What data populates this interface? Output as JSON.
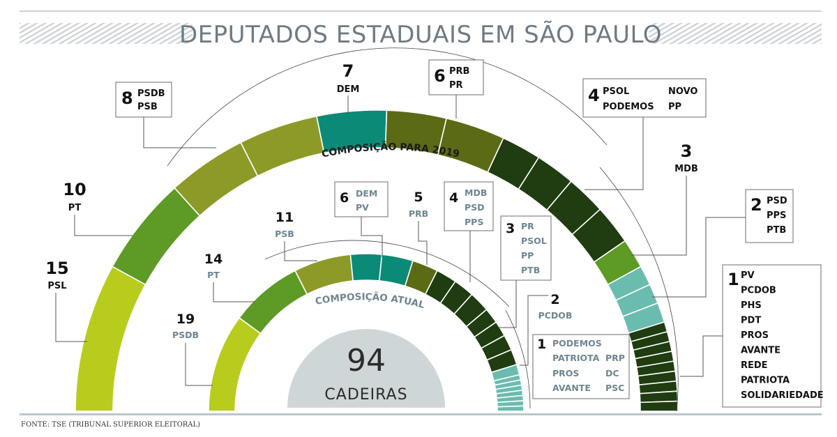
{
  "title": "DEPUTADOS ESTADUAIS EM SÃO PAULO",
  "source": "FONTE: TSE (TRIBUNAL SUPERIOR ELEITORAL)",
  "center": {
    "number": "94",
    "label": "CADEIRAS"
  },
  "chart_data": [
    {
      "type": "semicircle-parliament",
      "title": "COMPOSIÇÃO PARA 2019",
      "total": 94,
      "groups": [
        {
          "value": 15,
          "parties": [
            "PSL"
          ],
          "count": 1,
          "color": "#b8cc1e"
        },
        {
          "value": 10,
          "parties": [
            "PT"
          ],
          "count": 1,
          "color": "#5d9a26"
        },
        {
          "value": 8,
          "parties": [
            "PSDB",
            "PSB"
          ],
          "count": 2,
          "color": "#8e9a28"
        },
        {
          "value": 7,
          "parties": [
            "DEM"
          ],
          "count": 1,
          "color": "#0b8a78"
        },
        {
          "value": 6,
          "parties": [
            "PRB",
            "PR"
          ],
          "count": 2,
          "color": "#5b6a14"
        },
        {
          "value": 4,
          "parties": [
            "PSOL",
            "NOVO",
            "PODEMOS",
            "PP"
          ],
          "count": 4,
          "color": "#1f3d10"
        },
        {
          "value": 3,
          "parties": [
            "MDB"
          ],
          "count": 1,
          "color": "#5d9a26"
        },
        {
          "value": 2,
          "parties": [
            "PSD",
            "PPS",
            "PTB"
          ],
          "count": 3,
          "color": "#6abcae"
        },
        {
          "value": 1,
          "parties": [
            "PV",
            "PCDOB",
            "PHS",
            "PDT",
            "PROS",
            "AVANTE",
            "REDE",
            "PATRIOTA",
            "SOLIDARIEDADE"
          ],
          "count": 9,
          "color": "#1f3d10"
        }
      ]
    },
    {
      "type": "semicircle-parliament",
      "title": "COMPOSIÇÃO ATUAL",
      "total": 94,
      "groups": [
        {
          "value": 19,
          "parties": [
            "PSDB"
          ],
          "count": 1,
          "color": "#b8cc1e"
        },
        {
          "value": 14,
          "parties": [
            "PT"
          ],
          "count": 1,
          "color": "#5d9a26"
        },
        {
          "value": 11,
          "parties": [
            "PSB"
          ],
          "count": 1,
          "color": "#8e9a28"
        },
        {
          "value": 6,
          "parties": [
            "DEM",
            "PV"
          ],
          "count": 2,
          "color": "#0b8a78"
        },
        {
          "value": 5,
          "parties": [
            "PRB"
          ],
          "count": 1,
          "color": "#5b6a14"
        },
        {
          "value": 4,
          "parties": [
            "MDB",
            "PSD",
            "PPS"
          ],
          "count": 3,
          "color": "#1f3d10"
        },
        {
          "value": 3,
          "parties": [
            "PR",
            "PSOL",
            "PP",
            "PTB"
          ],
          "count": 4,
          "color": "#1f3d10"
        },
        {
          "value": 2,
          "parties": [
            "PCDOB"
          ],
          "count": 1,
          "color": "#6abcae"
        },
        {
          "value": 1,
          "parties": [
            "PODEMOS",
            "PATRIOTA",
            "PROS",
            "AVANTE",
            "PRP",
            "DC",
            "PSC"
          ],
          "count": 7,
          "color": "#6abcae"
        }
      ]
    }
  ],
  "outer_labels": {
    "g15": {
      "num": "15",
      "p": [
        "PSL"
      ]
    },
    "g10": {
      "num": "10",
      "p": [
        "PT"
      ]
    },
    "g8": {
      "num": "8",
      "p": [
        "PSDB",
        "PSB"
      ]
    },
    "g7": {
      "num": "7",
      "p": [
        "DEM"
      ]
    },
    "g6": {
      "num": "6",
      "p": [
        "PRB",
        "PR"
      ]
    },
    "g4": {
      "num": "4",
      "p": [
        "PSOL",
        "NOVO",
        "PODEMOS",
        "PP"
      ]
    },
    "g3": {
      "num": "3",
      "p": [
        "MDB"
      ]
    },
    "g2": {
      "num": "2",
      "p": [
        "PSD",
        "PPS",
        "PTB"
      ]
    },
    "g1": {
      "num": "1",
      "p": [
        "PV",
        "PCDOB",
        "PHS",
        "PDT",
        "PROS",
        "AVANTE",
        "REDE",
        "PATRIOTA",
        "SOLIDARIEDADE"
      ]
    }
  },
  "inner_labels": {
    "g19": {
      "num": "19",
      "p": [
        "PSDB"
      ]
    },
    "g14": {
      "num": "14",
      "p": [
        "PT"
      ]
    },
    "g11": {
      "num": "11",
      "p": [
        "PSB"
      ]
    },
    "g6": {
      "num": "6",
      "p": [
        "DEM",
        "PV"
      ]
    },
    "g5": {
      "num": "5",
      "p": [
        "PRB"
      ]
    },
    "g4": {
      "num": "4",
      "p": [
        "MDB",
        "PSD",
        "PPS"
      ]
    },
    "g3": {
      "num": "3",
      "p": [
        "PR",
        "PSOL",
        "PP",
        "PTB"
      ]
    },
    "g2": {
      "num": "2",
      "p": [
        "PCDOB"
      ]
    },
    "g1": {
      "num": "1",
      "p": [
        "PODEMOS",
        "PATRIOTA",
        "PRP",
        "PROS",
        "DC",
        "AVANTE",
        "PSC"
      ]
    }
  }
}
